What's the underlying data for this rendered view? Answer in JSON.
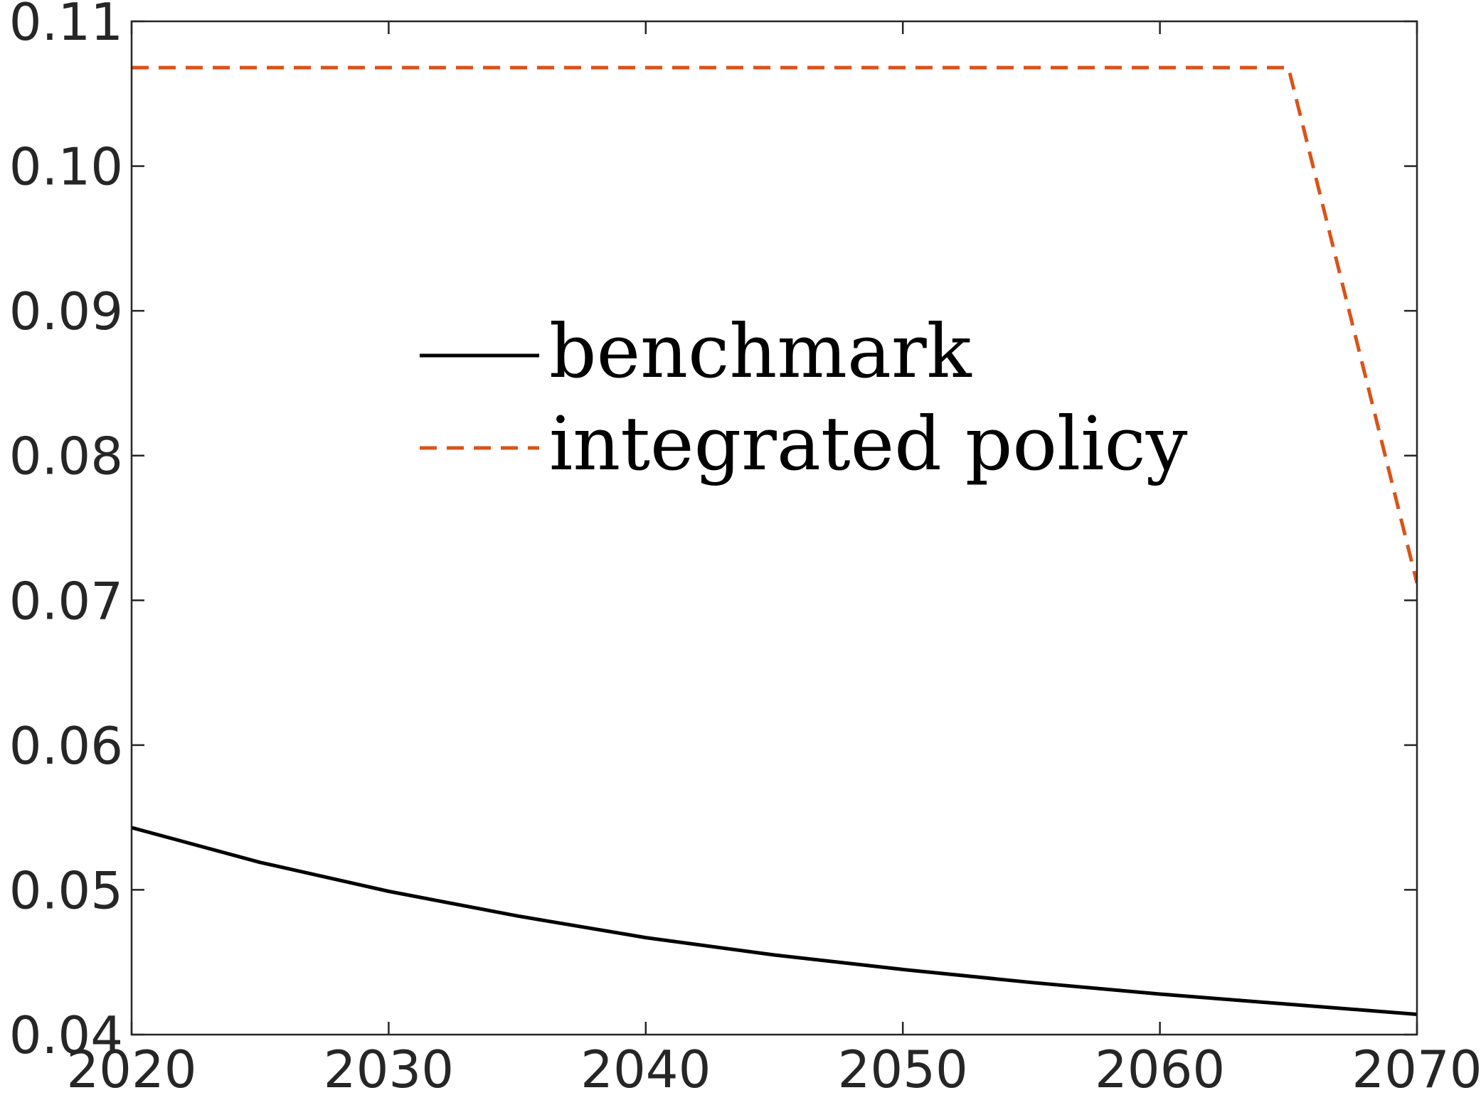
{
  "chart_data": {
    "type": "line",
    "title": "",
    "xlabel": "",
    "ylabel": "",
    "xlim": [
      2020,
      2070
    ],
    "ylim": [
      0.04,
      0.11
    ],
    "xticks": [
      2020,
      2030,
      2040,
      2050,
      2060,
      2070
    ],
    "yticks": [
      0.04,
      0.05,
      0.06,
      0.07,
      0.08,
      0.09,
      0.1,
      0.11
    ],
    "x_tick_labels": [
      "2020",
      "2030",
      "2040",
      "2050",
      "2060",
      "2070"
    ],
    "y_tick_labels": [
      "0.04",
      "0.05",
      "0.06",
      "0.07",
      "0.08",
      "0.09",
      "0.10",
      "0.11"
    ],
    "grid": false,
    "legend_position": "upper-center",
    "series": [
      {
        "name": "benchmark",
        "color": "#000000",
        "style": "solid",
        "x": [
          2020,
          2025,
          2030,
          2035,
          2040,
          2045,
          2050,
          2055,
          2060,
          2065,
          2070
        ],
        "y": [
          0.0543,
          0.0519,
          0.0499,
          0.0482,
          0.0467,
          0.0455,
          0.0445,
          0.0436,
          0.0428,
          0.0421,
          0.0414
        ]
      },
      {
        "name": "integrated policy",
        "color": "#D95319",
        "style": "dashed",
        "x": [
          2020,
          2025,
          2030,
          2035,
          2040,
          2045,
          2050,
          2055,
          2060,
          2065,
          2070
        ],
        "y": [
          0.1068,
          0.1068,
          0.1068,
          0.1068,
          0.1068,
          0.1068,
          0.1068,
          0.1068,
          0.1068,
          0.1068,
          0.0712
        ]
      }
    ]
  }
}
